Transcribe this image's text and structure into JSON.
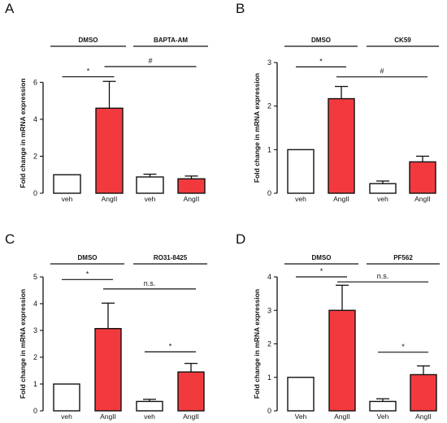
{
  "colors": {
    "control_fill": "#ffffff",
    "treated_fill": "#f23a3e",
    "stroke": "#111111"
  },
  "chart_data": [
    {
      "panel": "A",
      "type": "bar",
      "ylabel": "Fold change in mRNA expression",
      "ylim": [
        0,
        6.5
      ],
      "yticks": [
        0,
        2,
        4,
        6
      ],
      "categories": [
        "veh",
        "AngII",
        "veh",
        "AngII"
      ],
      "values": [
        1.0,
        4.6,
        0.88,
        0.78
      ],
      "errors": [
        0,
        1.45,
        0.15,
        0.15
      ],
      "bar_fills": [
        "control_fill",
        "treated_fill",
        "control_fill",
        "treated_fill"
      ],
      "groups": [
        {
          "label": "DMSO",
          "bars": [
            0,
            1
          ]
        },
        {
          "label": "BAPTA-AM",
          "bars": [
            2,
            3
          ]
        }
      ],
      "comparisons": [
        {
          "from": 0,
          "to": 1,
          "label": "*",
          "y": 6.3
        },
        {
          "from": 1,
          "to": 3,
          "label": "#",
          "y": 6.85
        }
      ]
    },
    {
      "panel": "B",
      "type": "bar",
      "ylabel": "Fold change in mRNA expression",
      "ylim": [
        0,
        3
      ],
      "yticks": [
        0,
        1,
        2,
        3
      ],
      "categories": [
        "veh",
        "AngII",
        "veh",
        "AngII"
      ],
      "values": [
        1.0,
        2.17,
        0.22,
        0.72
      ],
      "errors": [
        0,
        0.28,
        0.06,
        0.13
      ],
      "bar_fills": [
        "control_fill",
        "treated_fill",
        "control_fill",
        "treated_fill"
      ],
      "groups": [
        {
          "label": "DMSO",
          "bars": [
            0,
            1
          ]
        },
        {
          "label": "CK59",
          "bars": [
            2,
            3
          ]
        }
      ],
      "comparisons": [
        {
          "from": 0,
          "to": 1,
          "label": "*",
          "y": 2.9
        },
        {
          "from": 1,
          "to": 3,
          "label": "#",
          "y": 2.67
        }
      ]
    },
    {
      "panel": "C",
      "type": "bar",
      "ylabel": "Fold change in mRNA expression",
      "ylim": [
        0,
        5
      ],
      "yticks": [
        0,
        1,
        2,
        3,
        4,
        5
      ],
      "categories": [
        "veh",
        "AngII",
        "veh",
        "AngII"
      ],
      "values": [
        1.0,
        3.07,
        0.35,
        1.45
      ],
      "errors": [
        0,
        0.95,
        0.08,
        0.32
      ],
      "bar_fills": [
        "control_fill",
        "treated_fill",
        "control_fill",
        "treated_fill"
      ],
      "groups": [
        {
          "label": "DMSO",
          "bars": [
            0,
            1
          ]
        },
        {
          "label": "RO31-8425",
          "bars": [
            2,
            3
          ]
        }
      ],
      "comparisons": [
        {
          "from": 0,
          "to": 1,
          "label": "*",
          "y": 4.9
        },
        {
          "from": 1,
          "to": 3,
          "label": "n.s.",
          "y": 4.55
        },
        {
          "from": 2,
          "to": 3,
          "label": "*",
          "y": 2.2
        }
      ]
    },
    {
      "panel": "D",
      "type": "bar",
      "ylabel": "Fold change in mRNA expression",
      "ylim": [
        0,
        4
      ],
      "yticks": [
        0,
        1,
        2,
        3,
        4
      ],
      "categories": [
        "Veh",
        "AngII",
        "Veh",
        "AngII"
      ],
      "values": [
        1.0,
        3.0,
        0.28,
        1.08
      ],
      "errors": [
        0,
        0.75,
        0.08,
        0.26
      ],
      "bar_fills": [
        "control_fill",
        "treated_fill",
        "control_fill",
        "treated_fill"
      ],
      "groups": [
        {
          "label": "DMSO",
          "bars": [
            0,
            1
          ]
        },
        {
          "label": "PF562",
          "bars": [
            2,
            3
          ]
        }
      ],
      "comparisons": [
        {
          "from": 0,
          "to": 1,
          "label": "*",
          "y": 4.0
        },
        {
          "from": 1,
          "to": 3,
          "label": "n.s.",
          "y": 3.85
        },
        {
          "from": 2,
          "to": 3,
          "label": "*",
          "y": 1.75
        }
      ]
    }
  ]
}
